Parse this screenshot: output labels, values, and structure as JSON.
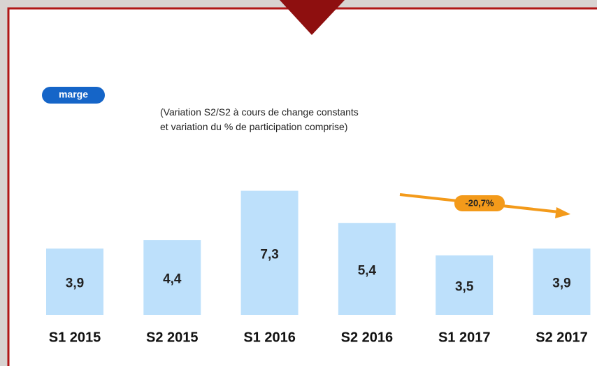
{
  "chart_data": {
    "type": "bar",
    "title": "marge",
    "subtitle": "(Variation S2/S2 à cours de change constants et variation du % de participation comprise)",
    "categories": [
      "S1 2015",
      "S2 2015",
      "S1 2016",
      "S2 2016",
      "S1 2017",
      "S2 2017"
    ],
    "values": [
      3.9,
      4.4,
      7.3,
      5.4,
      3.5,
      3.9
    ],
    "value_labels": [
      "3,9",
      "4,4",
      "7,3",
      "5,4",
      "3,5",
      "3,9"
    ],
    "color": "#bde0fb",
    "annotation": "-20,7%"
  }
}
